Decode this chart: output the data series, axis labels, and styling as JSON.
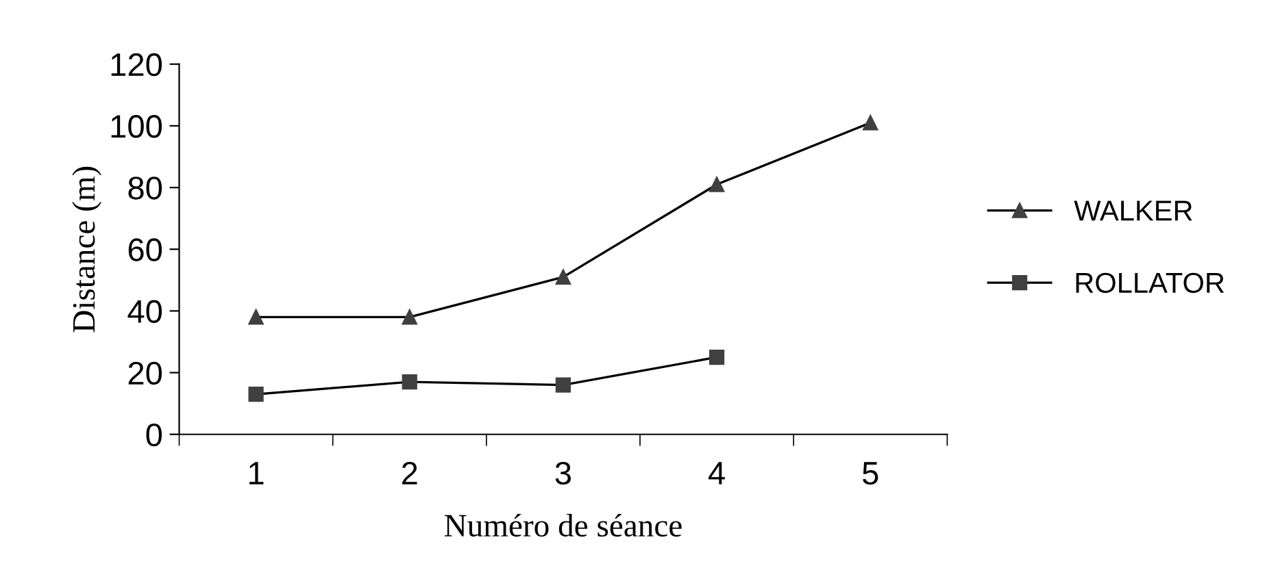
{
  "chart_data": {
    "type": "line",
    "xlabel": "Numéro de séance",
    "ylabel": "Distance (m)",
    "categories": [
      "1",
      "2",
      "3",
      "4",
      "5"
    ],
    "ylim": [
      0,
      120
    ],
    "yticks": [
      0,
      20,
      40,
      60,
      80,
      100,
      120
    ],
    "grid": false,
    "legend": "right",
    "line_style": "solid",
    "series": [
      {
        "name": "WALKER",
        "color": "#404040",
        "marker": "triangle",
        "values": [
          38,
          38,
          51,
          81,
          101
        ]
      },
      {
        "name": "ROLLATOR",
        "color": "#404040",
        "marker": "square",
        "values": [
          13,
          17,
          16,
          25,
          null
        ]
      }
    ]
  }
}
